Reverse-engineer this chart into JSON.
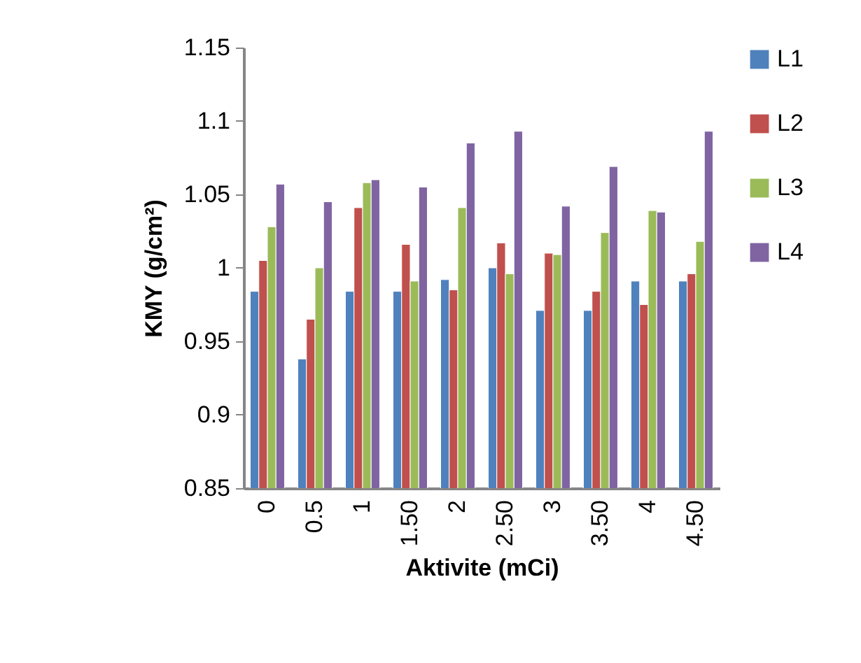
{
  "chart_data": {
    "type": "bar",
    "xlabel": "Aktivite (mCi)",
    "ylabel": "KMY (g/cm²)",
    "categories": [
      "0",
      "0.5",
      "1",
      "1.50",
      "2",
      "2.50",
      "3",
      "3.50",
      "4",
      "4.50"
    ],
    "series": [
      {
        "name": "L1",
        "color": "#4f81bd",
        "values": [
          0.984,
          0.938,
          0.984,
          0.984,
          0.992,
          1.0,
          0.971,
          0.971,
          0.991,
          0.991
        ]
      },
      {
        "name": "L2",
        "color": "#c0504d",
        "values": [
          1.005,
          0.965,
          1.041,
          1.016,
          0.985,
          1.017,
          1.01,
          0.984,
          0.975,
          0.996
        ]
      },
      {
        "name": "L3",
        "color": "#9bbb59",
        "values": [
          1.028,
          1.0,
          1.058,
          0.991,
          1.041,
          0.996,
          1.009,
          1.024,
          1.039,
          1.018
        ]
      },
      {
        "name": "L4",
        "color": "#8064a2",
        "values": [
          1.057,
          1.045,
          1.06,
          1.055,
          1.085,
          1.093,
          1.042,
          1.069,
          1.038,
          1.093
        ]
      }
    ],
    "ylim": [
      0.85,
      1.15
    ],
    "yticks": [
      0.85,
      0.9,
      0.95,
      1,
      1.05,
      1.1,
      1.15
    ],
    "grid": false,
    "legend": "right"
  }
}
